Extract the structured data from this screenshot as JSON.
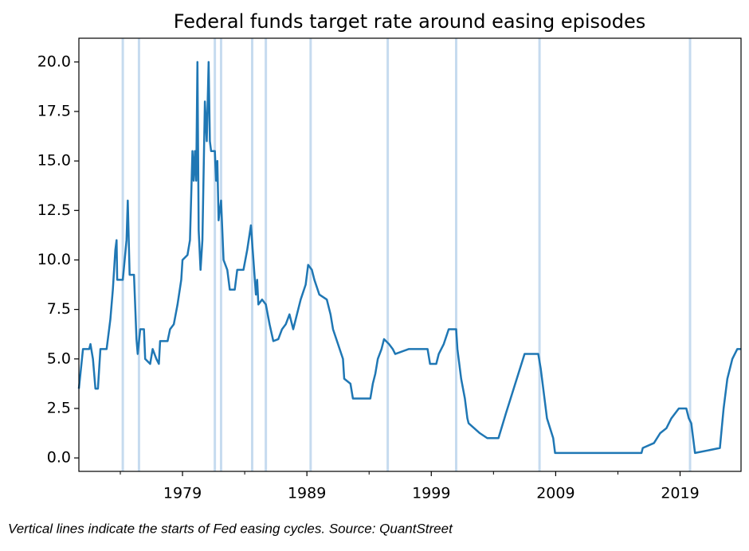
{
  "chart_data": {
    "type": "line",
    "title": "Federal funds target rate around easing episodes",
    "caption": "Vertical lines indicate the starts of Fed easing cycles. Source: QuantStreet",
    "x": [
      1970.67,
      1971.0,
      1971.5,
      1971.6,
      1971.8,
      1972.0,
      1972.2,
      1972.4,
      1972.9,
      1973.2,
      1973.4,
      1973.6,
      1973.7,
      1973.75,
      1974.2,
      1974.5,
      1974.6,
      1974.75,
      1975.1,
      1975.3,
      1975.4,
      1975.6,
      1975.9,
      1976.0,
      1976.4,
      1976.6,
      1976.9,
      1977.1,
      1977.2,
      1977.8,
      1978.0,
      1978.3,
      1978.6,
      1978.9,
      1979.0,
      1979.4,
      1979.6,
      1979.8,
      1979.9,
      1980.0,
      1980.1,
      1980.2,
      1980.3,
      1980.45,
      1980.6,
      1980.8,
      1980.95,
      1981.1,
      1981.2,
      1981.3,
      1981.6,
      1981.7,
      1981.8,
      1981.9,
      1982.1,
      1982.3,
      1982.6,
      1982.8,
      1983.2,
      1983.4,
      1983.9,
      1984.2,
      1984.5,
      1984.7,
      1984.9,
      1985.0,
      1985.1,
      1985.4,
      1985.7,
      1986.0,
      1986.3,
      1986.7,
      1987.0,
      1987.3,
      1987.6,
      1987.9,
      1988.1,
      1988.5,
      1988.9,
      1989.1,
      1989.4,
      1989.6,
      1990.0,
      1990.6,
      1990.9,
      1991.1,
      1991.5,
      1991.9,
      1992.0,
      1992.5,
      1992.7,
      1994.1,
      1994.3,
      1994.5,
      1994.7,
      1995.0,
      1995.2,
      1995.6,
      1995.9,
      1996.1,
      1997.2,
      1998.7,
      1998.9,
      1999.4,
      1999.6,
      2000.0,
      2000.4,
      2001.0,
      2001.1,
      2001.4,
      2001.7,
      2001.9,
      2002.0,
      2002.9,
      2003.5,
      2004.4,
      2005.0,
      2005.5,
      2006.0,
      2006.5,
      2007.6,
      2007.8,
      2008.1,
      2008.3,
      2008.8,
      2008.95,
      2015.9,
      2016.0,
      2016.9,
      2017.4,
      2017.9,
      2018.3,
      2018.9,
      2019.5,
      2019.7,
      2019.9,
      2020.2,
      2022.2,
      2022.5,
      2022.8,
      2023.2,
      2023.6,
      2023.9
    ],
    "values": [
      3.5,
      5.5,
      5.5,
      5.75,
      5.0,
      3.5,
      3.5,
      5.5,
      5.5,
      7.0,
      8.5,
      10.5,
      11.0,
      9.0,
      9.0,
      11.0,
      13.0,
      9.25,
      9.25,
      6.0,
      5.25,
      6.5,
      6.5,
      5.0,
      4.75,
      5.5,
      5.0,
      4.75,
      5.9,
      5.9,
      6.5,
      6.75,
      7.75,
      9.0,
      10.0,
      10.25,
      11.0,
      15.5,
      14.0,
      15.5,
      14.0,
      20.0,
      11.5,
      9.5,
      11.0,
      18.0,
      16.0,
      20.0,
      16.0,
      15.5,
      15.5,
      14.0,
      15.0,
      12.0,
      13.0,
      10.0,
      9.5,
      8.5,
      8.5,
      9.5,
      9.5,
      10.5,
      11.75,
      10.0,
      8.25,
      9.0,
      7.75,
      8.0,
      7.75,
      6.75,
      5.9,
      6.0,
      6.5,
      6.75,
      7.25,
      6.5,
      7.0,
      8.0,
      8.75,
      9.75,
      9.5,
      9.0,
      8.25,
      8.0,
      7.25,
      6.5,
      5.75,
      5.0,
      4.0,
      3.75,
      3.0,
      3.0,
      3.75,
      4.25,
      5.0,
      5.5,
      6.0,
      5.75,
      5.5,
      5.25,
      5.5,
      5.5,
      4.75,
      4.75,
      5.25,
      5.75,
      6.5,
      6.5,
      5.5,
      4.0,
      3.0,
      2.0,
      1.75,
      1.25,
      1.0,
      1.0,
      2.25,
      3.25,
      4.25,
      5.25,
      5.25,
      4.5,
      3.0,
      2.0,
      1.0,
      0.25,
      0.25,
      0.5,
      0.75,
      1.25,
      1.5,
      2.0,
      2.5,
      2.5,
      2.0,
      1.75,
      0.25,
      0.5,
      2.5,
      4.0,
      5.0,
      5.5,
      5.5
    ],
    "color": "#1f77b4",
    "easing_starts": [
      1974.2,
      1975.5,
      1981.6,
      1982.1,
      1984.6,
      1985.7,
      1989.3,
      1995.5,
      2001.0,
      2007.7,
      2019.8
    ],
    "easing_color": "#c6dbef",
    "xlim": [
      1970.67,
      2023.9
    ],
    "xticks": [
      1979,
      1989,
      1999,
      2009,
      2019
    ],
    "xminorticks": [
      1974,
      1984,
      1994,
      2004,
      2014
    ],
    "ylim": [
      -0.68,
      21.2
    ],
    "yticks": [
      {
        "value": 0,
        "label": "0.0"
      },
      2.5,
      {
        "value": 5,
        "label": "5.0"
      },
      7.5,
      {
        "value": 10,
        "label": "10.0"
      },
      12.5,
      {
        "value": 15,
        "label": "15.0"
      },
      17.5,
      {
        "value": 20,
        "label": "20.0"
      }
    ]
  }
}
